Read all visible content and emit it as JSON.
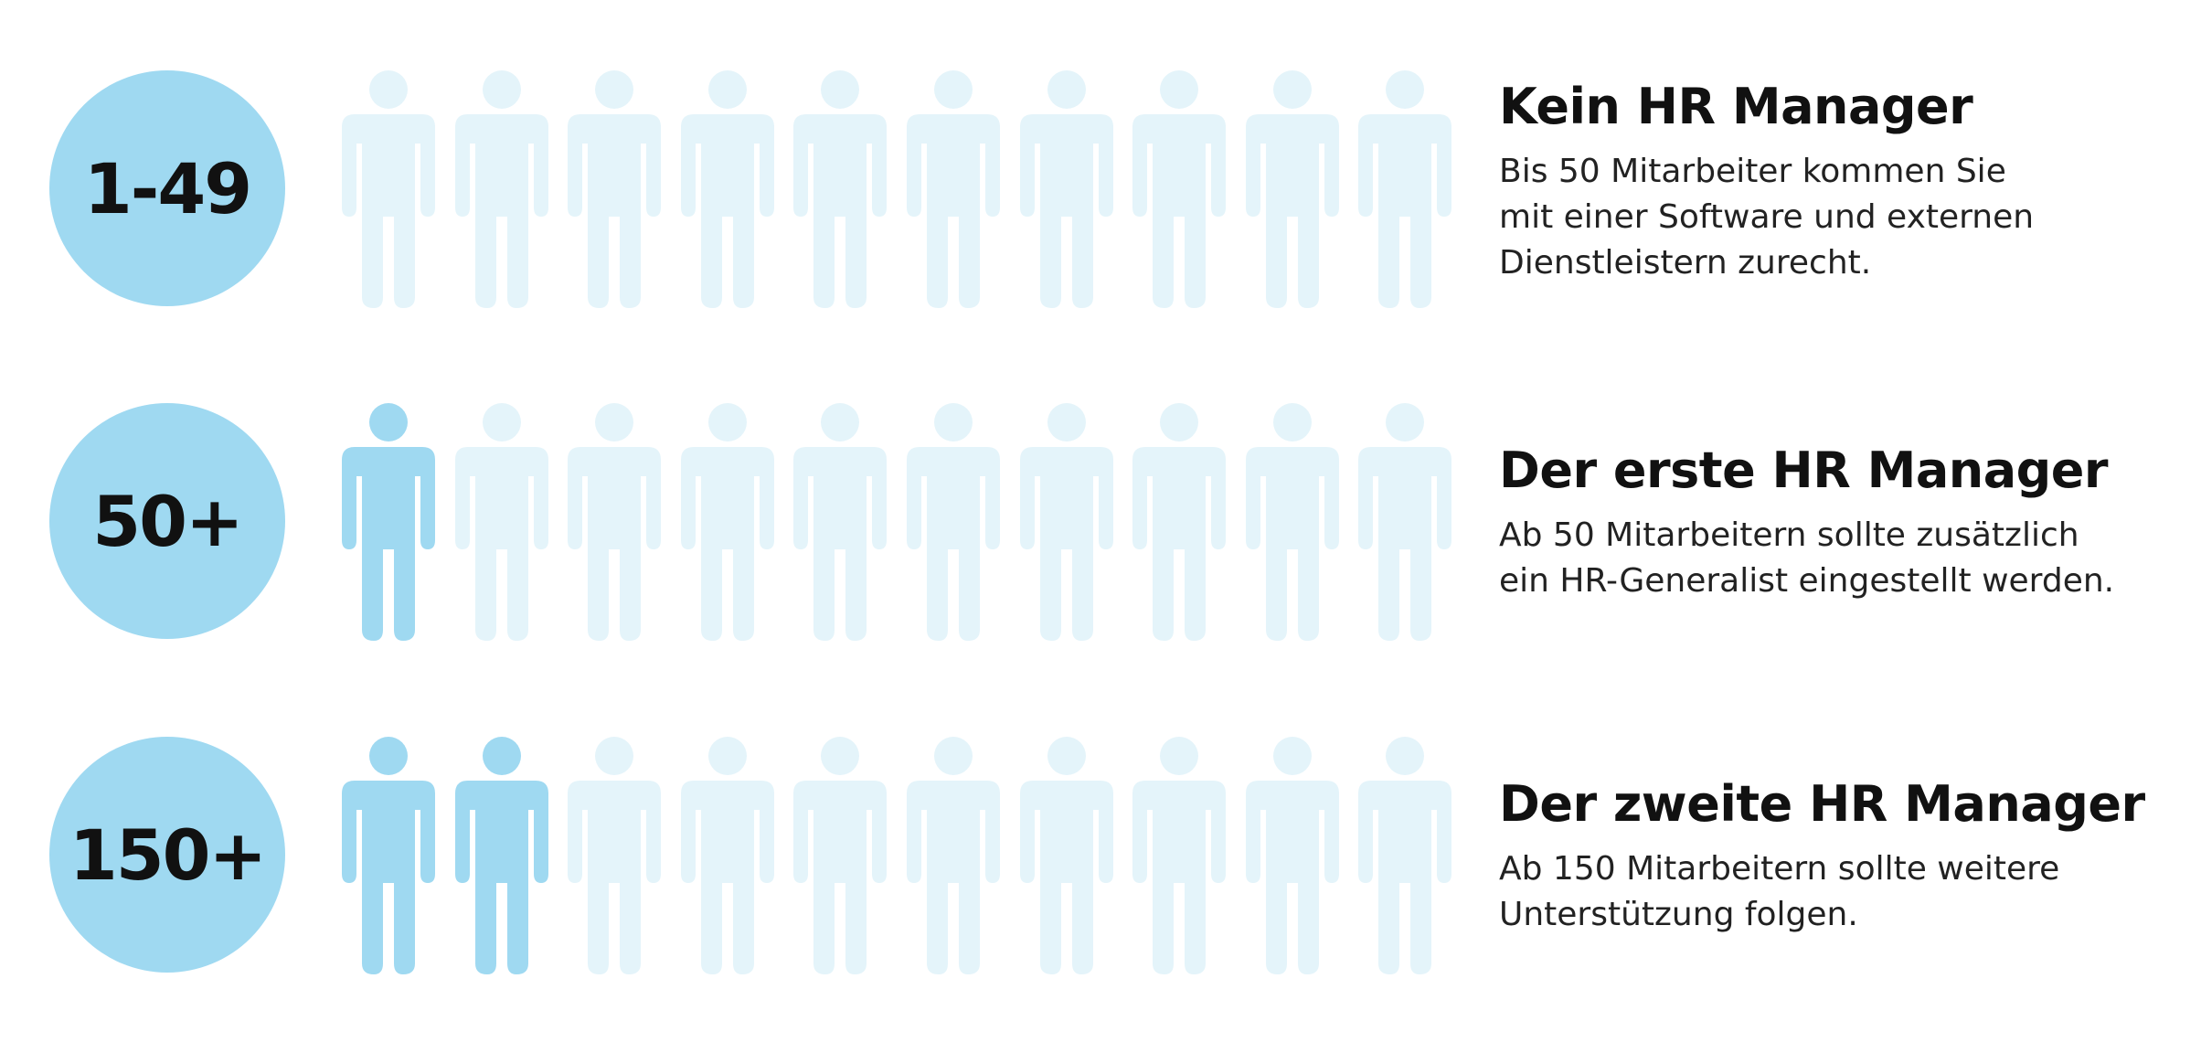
{
  "colors": {
    "badge": "#9fd9f1",
    "person_active": "#9fd9f1",
    "person_inactive": "#e4f4fa",
    "text": "#111111"
  },
  "icon": "person-icon",
  "people_per_row": 10,
  "rows": [
    {
      "badge": "1-49",
      "active_people": 0,
      "title": "Kein HR Manager",
      "desc_lines": [
        "Bis 50 Mitarbeiter kommen Sie",
        "mit einer Software und externen",
        "Dienstleistern zurecht."
      ]
    },
    {
      "badge": "50+",
      "active_people": 1,
      "title": "Der erste HR Manager",
      "desc_lines": [
        "Ab 50 Mitarbeitern sollte zusätzlich",
        "ein HR-Generalist eingestellt werden."
      ]
    },
    {
      "badge": "150+",
      "active_people": 2,
      "title": "Der zweite HR Manager",
      "desc_lines": [
        "Ab 150 Mitarbeitern sollte weitere",
        "Unterstützung folgen."
      ]
    }
  ]
}
